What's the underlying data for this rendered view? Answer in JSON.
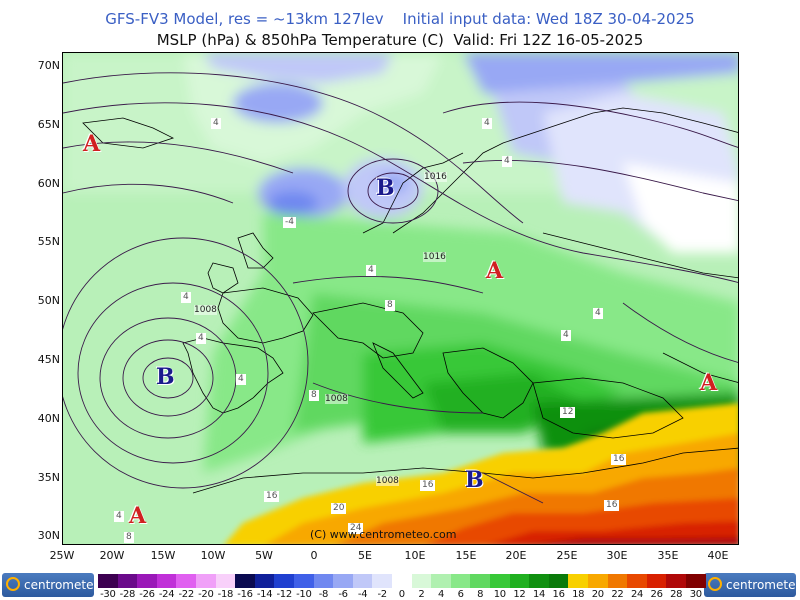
{
  "header": {
    "line1": "GFS-FV3 Model, res = ~13km 127lev    Initial input data: Wed 18Z 30-04-2025",
    "line2": "MSLP (hPa) & 850hPa Temperature (C)  Valid: Fri 12Z 16-05-2025"
  },
  "axes": {
    "lat_labels": [
      "70N",
      "65N",
      "60N",
      "55N",
      "50N",
      "45N",
      "40N",
      "35N",
      "30N"
    ],
    "lon_labels": [
      "25W",
      "20W",
      "15W",
      "10W",
      "5W",
      "0",
      "5E",
      "10E",
      "15E",
      "20E",
      "25E",
      "30E",
      "35E",
      "40E"
    ]
  },
  "pressure_centers": [
    {
      "label": "A",
      "kind": "high"
    },
    {
      "label": "B",
      "kind": "low"
    },
    {
      "label": "A",
      "kind": "high"
    },
    {
      "label": "B",
      "kind": "low"
    },
    {
      "label": "A",
      "kind": "high"
    },
    {
      "label": "B",
      "kind": "low"
    },
    {
      "label": "A",
      "kind": "high"
    }
  ],
  "isobar_labels": [
    "1008",
    "1016",
    "1008",
    "1008",
    "1016"
  ],
  "temperature_labels": [
    "4",
    "4",
    "4",
    "-4",
    "4",
    "4",
    "4",
    "4",
    "4",
    "8",
    "4",
    "8",
    "12",
    "16",
    "16",
    "16",
    "16",
    "20",
    "24",
    "8",
    "4"
  ],
  "copyright": "(C) www.centrometeo.com",
  "colorbar": {
    "ticks": [
      "-30",
      "-28",
      "-26",
      "-24",
      "-22",
      "-20",
      "-18",
      "-16",
      "-14",
      "-12",
      "-10",
      "-8",
      "-6",
      "-4",
      "-2",
      "0",
      "2",
      "4",
      "6",
      "8",
      "10",
      "12",
      "14",
      "16",
      "18",
      "20",
      "22",
      "24",
      "26",
      "28",
      "30"
    ],
    "colors": [
      "#3c0050",
      "#6a0a8a",
      "#9a18b8",
      "#c030d8",
      "#e060f0",
      "#f0a0f8",
      "#f8d0fa",
      "#0a0a50",
      "#10209a",
      "#2040d0",
      "#4060e8",
      "#7088f0",
      "#98a8f4",
      "#c0c8f8",
      "#e0e4fc",
      "#ffffff",
      "#d8f8d8",
      "#b0f0b0",
      "#88e888",
      "#60d860",
      "#38c838",
      "#20b020",
      "#109010",
      "#0a7a0a",
      "#f8d000",
      "#f8a800",
      "#f07800",
      "#e84800",
      "#d82000",
      "#b00808",
      "#800000"
    ],
    "logo_text": "centrometeo"
  }
}
